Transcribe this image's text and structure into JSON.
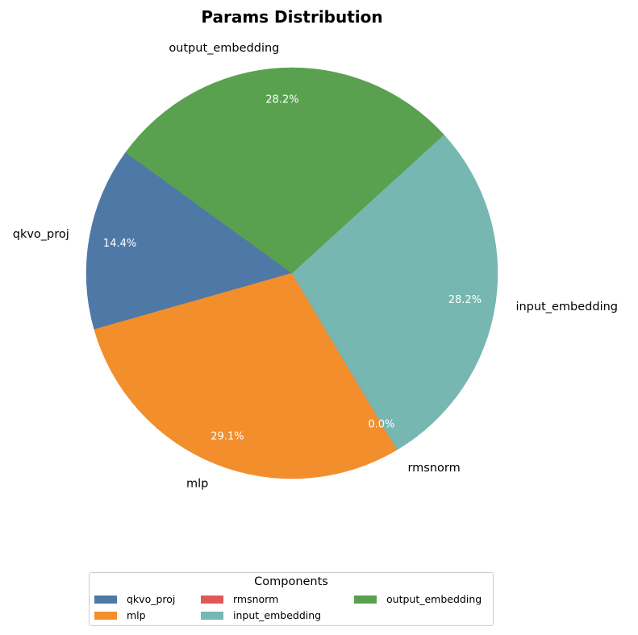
{
  "chart_data": {
    "type": "pie",
    "title": "Params Distribution",
    "slices": [
      {
        "label": "qkvo_proj",
        "pct_label": "14.4%",
        "value": 14.4,
        "color": "#4e79a7"
      },
      {
        "label": "mlp",
        "pct_label": "29.1%",
        "value": 29.1,
        "color": "#f28e2b"
      },
      {
        "label": "rmsnorm",
        "pct_label": "0.0%",
        "value": 0.0,
        "color": "#e15759"
      },
      {
        "label": "input_embedding",
        "pct_label": "28.2%",
        "value": 28.2,
        "color": "#76b7b2"
      },
      {
        "label": "output_embedding",
        "pct_label": "28.2%",
        "value": 28.2,
        "color": "#59a14f"
      }
    ],
    "legend": {
      "title": "Components",
      "placement": "bottom-center",
      "items": [
        "qkvo_proj",
        "mlp",
        "rmsnorm",
        "input_embedding",
        "output_embedding"
      ]
    }
  }
}
